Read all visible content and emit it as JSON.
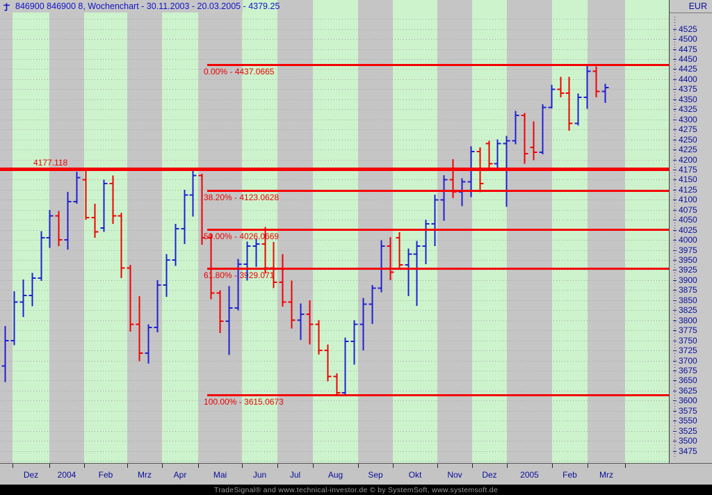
{
  "window": {
    "title": "846900  846900  8, Wochenchart - 30.11.2003 - 20.03.2005 - 4379.25",
    "symbol": "846900",
    "period": "8, Wochenchart",
    "range": "30.11.2003 - 20.03.2005",
    "last_price": "4379.25"
  },
  "price_axis": {
    "currency": "EUR",
    "min": 3475,
    "max": 4525,
    "step": 25
  },
  "time_axis": {
    "months": [
      {
        "label": "",
        "x0": 0,
        "x1": 18,
        "shade": "gray"
      },
      {
        "label": "Dez",
        "x0": 18,
        "x1": 71,
        "shade": "green"
      },
      {
        "label": "2004",
        "x0": 71,
        "x1": 121,
        "shade": "gray"
      },
      {
        "label": "Feb",
        "x0": 121,
        "x1": 183,
        "shade": "green"
      },
      {
        "label": "Mrz",
        "x0": 183,
        "x1": 233,
        "shade": "gray"
      },
      {
        "label": "Apr",
        "x0": 233,
        "x1": 285,
        "shade": "green"
      },
      {
        "label": "Mai",
        "x0": 285,
        "x1": 348,
        "shade": "gray"
      },
      {
        "label": "Jun",
        "x0": 348,
        "x1": 399,
        "shade": "green"
      },
      {
        "label": "Jul",
        "x0": 399,
        "x1": 450,
        "shade": "gray"
      },
      {
        "label": "Aug",
        "x0": 450,
        "x1": 515,
        "shade": "green"
      },
      {
        "label": "Sep",
        "x0": 515,
        "x1": 565,
        "shade": "gray"
      },
      {
        "label": "Okt",
        "x0": 565,
        "x1": 629,
        "shade": "green"
      },
      {
        "label": "Nov",
        "x0": 629,
        "x1": 679,
        "shade": "gray"
      },
      {
        "label": "Dez",
        "x0": 679,
        "x1": 729,
        "shade": "green"
      },
      {
        "label": "2005",
        "x0": 729,
        "x1": 794,
        "shade": "gray"
      },
      {
        "label": "Feb",
        "x0": 794,
        "x1": 845,
        "shade": "green"
      },
      {
        "label": "Mrz",
        "x0": 845,
        "x1": 899,
        "shade": "gray"
      },
      {
        "label": "",
        "x0": 899,
        "x1": 962,
        "shade": "green"
      }
    ]
  },
  "lines": {
    "horizontal": {
      "value": 4177.118,
      "label": "4177.118"
    },
    "fibonacci": [
      {
        "pct": "0.00%",
        "value": 4437.0665,
        "label": "0.00% - 4437.0665"
      },
      {
        "pct": "38.20%",
        "value": 4123.0628,
        "label": "38.20% - 4123.0628"
      },
      {
        "pct": "50.00%",
        "value": 4026.0669,
        "label": "50.00% - 4026.0669"
      },
      {
        "pct": "61.80%",
        "value": 3929.071,
        "label": "61.80% - 3929.071"
      },
      {
        "pct": "100.00%",
        "value": 3615.0673,
        "label": "100.00% - 3615.0673"
      }
    ]
  },
  "colors": {
    "up_bar": "#1f1fd2",
    "down_bar": "#f00000",
    "line_red": "#f40000",
    "stripe_green": "#cdf3cd",
    "stripe_gray": "#c5c5c5",
    "axis_text": "#0c0c9a"
  },
  "credit": {
    "text": "TradeSignal® and www.technical-investor.de © by  SystemSoft, www.systemsoft.de"
  },
  "chart_data": {
    "type": "bar",
    "subtype": "weekly-ohlc-bars",
    "title": "846900  846900  8, Wochenchart - 30.11.2003 - 20.03.2005 - 4379.25",
    "ylabel": "EUR",
    "ylim": [
      3475,
      4525
    ],
    "y_step": 25,
    "grid": "dotted-horizontal",
    "x_month_labels": [
      "Dez",
      "2004",
      "Feb",
      "Mrz",
      "Apr",
      "Mai",
      "Jun",
      "Jul",
      "Aug",
      "Sep",
      "Okt",
      "Nov",
      "Dez",
      "2005",
      "Feb",
      "Mrz"
    ],
    "columns": [
      "week_end",
      "open",
      "high",
      "low",
      "close"
    ],
    "bars": [
      [
        "05.12.2003",
        3686,
        3786,
        3646,
        3749
      ],
      [
        "12.12.2003",
        3749,
        3872,
        3738,
        3845
      ],
      [
        "19.12.2003",
        3845,
        3902,
        3808,
        3862
      ],
      [
        "26.12.2003",
        3862,
        3918,
        3835,
        3905
      ],
      [
        "02.01.2004",
        3905,
        4022,
        3898,
        4005
      ],
      [
        "09.01.2004",
        4005,
        4075,
        3980,
        4060
      ],
      [
        "16.01.2004",
        4060,
        4072,
        3985,
        4000
      ],
      [
        "23.01.2004",
        4000,
        4120,
        3976,
        4095
      ],
      [
        "30.01.2004",
        4095,
        4170,
        4090,
        4155
      ],
      [
        "06.02.2004",
        4150,
        4176,
        4050,
        4056
      ],
      [
        "13.02.2004",
        4056,
        4090,
        4005,
        4020
      ],
      [
        "20.02.2004",
        4030,
        4150,
        4020,
        4140
      ],
      [
        "27.02.2004",
        4140,
        4160,
        4040,
        4060
      ],
      [
        "05.03.2004",
        4060,
        4068,
        3905,
        3930
      ],
      [
        "12.03.2004",
        3930,
        3938,
        3772,
        3790
      ],
      [
        "19.03.2004",
        3790,
        3860,
        3698,
        3718
      ],
      [
        "26.03.2004",
        3718,
        3790,
        3692,
        3782
      ],
      [
        "02.04.2004",
        3782,
        3900,
        3770,
        3888
      ],
      [
        "09.04.2004",
        3888,
        3965,
        3858,
        3950
      ],
      [
        "16.04.2004",
        3950,
        4040,
        3935,
        4028
      ],
      [
        "23.04.2004",
        4028,
        4125,
        3990,
        4112
      ],
      [
        "30.04.2004",
        4112,
        4172,
        4058,
        4160
      ],
      [
        "07.05.2004",
        4160,
        4165,
        3988,
        4005
      ],
      [
        "14.05.2004",
        4005,
        4015,
        3852,
        3868
      ],
      [
        "21.05.2004",
        3868,
        3875,
        3768,
        3798
      ],
      [
        "28.05.2004",
        3798,
        3885,
        3714,
        3831
      ],
      [
        "04.06.2004",
        3831,
        3953,
        3825,
        3940
      ],
      [
        "11.06.2004",
        3940,
        3996,
        3899,
        3985
      ],
      [
        "18.06.2004",
        3985,
        4002,
        3933,
        3990
      ],
      [
        "25.06.2004",
        3990,
        4032,
        3916,
        3930
      ],
      [
        "02.07.2004",
        3930,
        3995,
        3880,
        3895
      ],
      [
        "09.07.2004",
        3895,
        3965,
        3834,
        3845
      ],
      [
        "16.07.2004",
        3845,
        3899,
        3780,
        3800
      ],
      [
        "23.07.2004",
        3800,
        3842,
        3751,
        3815
      ],
      [
        "30.07.2004",
        3815,
        3850,
        3740,
        3790
      ],
      [
        "06.08.2004",
        3790,
        3800,
        3715,
        3725
      ],
      [
        "13.08.2004",
        3725,
        3740,
        3648,
        3660
      ],
      [
        "20.08.2004",
        3660,
        3668,
        3614,
        3620
      ],
      [
        "27.08.2004",
        3620,
        3757,
        3613,
        3748
      ],
      [
        "03.09.2004",
        3748,
        3800,
        3690,
        3790
      ],
      [
        "10.09.2004",
        3790,
        3856,
        3725,
        3840
      ],
      [
        "17.09.2004",
        3840,
        3888,
        3791,
        3880
      ],
      [
        "24.09.2004",
        3880,
        3999,
        3870,
        3985
      ],
      [
        "01.10.2004",
        3985,
        4007,
        3900,
        3920
      ],
      [
        "08.10.2004",
        4005,
        4019,
        3928,
        3938
      ],
      [
        "15.10.2004",
        3938,
        3979,
        3860,
        3965
      ],
      [
        "22.10.2004",
        3965,
        3998,
        3836,
        3985
      ],
      [
        "29.10.2004",
        3985,
        4050,
        3940,
        4040
      ],
      [
        "05.11.2004",
        4040,
        4113,
        3985,
        4100
      ],
      [
        "12.11.2004",
        4100,
        4161,
        4048,
        4150
      ],
      [
        "19.11.2004",
        4150,
        4201,
        4104,
        4120
      ],
      [
        "26.11.2004",
        4120,
        4153,
        4084,
        4145
      ],
      [
        "03.12.2004",
        4145,
        4233,
        4107,
        4220
      ],
      [
        "10.12.2004",
        4220,
        4230,
        4119,
        4140
      ],
      [
        "17.12.2004",
        4240,
        4247,
        4176,
        4190
      ],
      [
        "24.12.2004",
        4190,
        4250,
        4176,
        4240
      ],
      [
        "31.12.2004",
        4240,
        4259,
        4082,
        4247
      ],
      [
        "07.01.2005",
        4247,
        4321,
        4238,
        4310
      ],
      [
        "14.01.2005",
        4310,
        4316,
        4190,
        4215
      ],
      [
        "21.01.2005",
        4230,
        4295,
        4198,
        4218
      ],
      [
        "28.01.2005",
        4218,
        4338,
        4213,
        4330
      ],
      [
        "04.02.2005",
        4330,
        4386,
        4327,
        4375
      ],
      [
        "11.02.2005",
        4375,
        4406,
        4355,
        4365
      ],
      [
        "18.02.2005",
        4365,
        4406,
        4272,
        4290
      ],
      [
        "25.02.2005",
        4290,
        4364,
        4285,
        4355
      ],
      [
        "04.03.2005",
        4355,
        4437,
        4326,
        4420
      ],
      [
        "11.03.2005",
        4420,
        4432,
        4355,
        4370
      ],
      [
        "18.03.2005",
        4370,
        4389,
        4341,
        4379.25
      ]
    ]
  }
}
